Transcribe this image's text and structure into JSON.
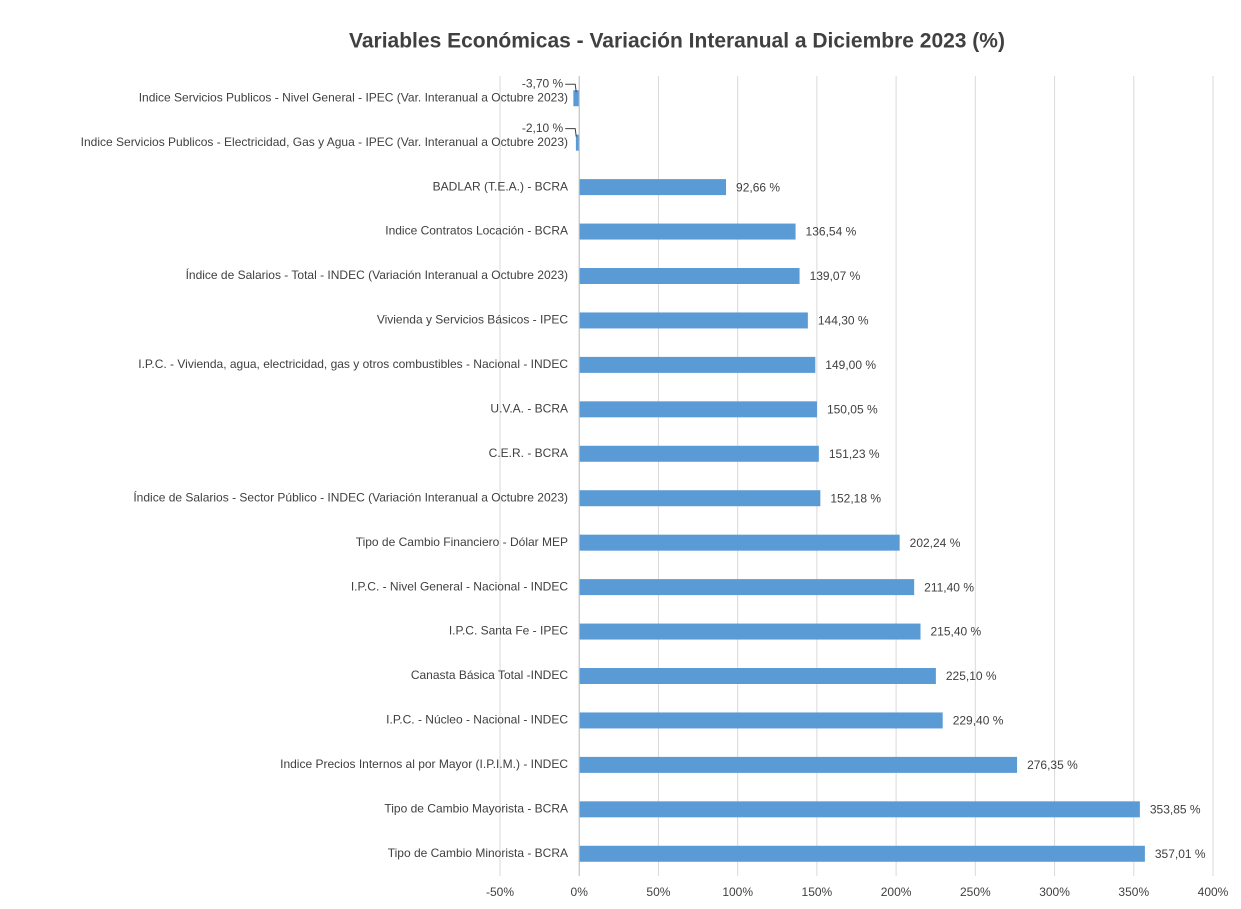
{
  "chart_data": {
    "type": "barh",
    "title": "Variables Económicas - Variación Interanual a Diciembre 2023 (%)",
    "categories": [
      "Indice Servicios Publicos - Nivel General - IPEC (Var. Interanual a Octubre 2023)",
      "Indice Servicios Publicos - Electricidad, Gas y Agua - IPEC (Var. Interanual a Octubre 2023)",
      "BADLAR (T.E.A.) - BCRA",
      "Indice Contratos Locación - BCRA",
      "Índice de Salarios - Total - INDEC (Variación Interanual a Octubre 2023)",
      "Vivienda y Servicios Básicos - IPEC",
      "I.P.C. - Vivienda, agua, electricidad, gas y otros combustibles - Nacional - INDEC",
      "U.V.A. - BCRA",
      "C.E.R. - BCRA",
      "Índice de Salarios - Sector Público - INDEC (Variación Interanual a Octubre 2023)",
      "Tipo de Cambio Financiero - Dólar MEP",
      "I.P.C. - Nivel General - Nacional - INDEC",
      "I.P.C. Santa Fe - IPEC",
      "Canasta Básica Total -INDEC",
      "I.P.C. - Núcleo - Nacional - INDEC",
      "Indice Precios Internos al por Mayor (I.P.I.M.) - INDEC",
      "Tipo de Cambio Mayorista - BCRA",
      "Tipo de Cambio Minorista - BCRA"
    ],
    "values": [
      -3.7,
      -2.1,
      92.66,
      136.54,
      139.07,
      144.3,
      149.0,
      150.05,
      151.23,
      152.18,
      202.24,
      211.4,
      215.4,
      225.1,
      229.4,
      276.35,
      353.85,
      357.01
    ],
    "value_labels": [
      "-3,70 %",
      "-2,10 %",
      "92,66 %",
      "136,54 %",
      "139,07 %",
      "144,30 %",
      "149,00 %",
      "150,05 %",
      "151,23 %",
      "152,18 %",
      "202,24 %",
      "211,40 %",
      "215,40 %",
      "225,10 %",
      "229,40 %",
      "276,35 %",
      "353,85 %",
      "357,01 %"
    ],
    "color": "#5b9bd5",
    "xlim": [
      -50,
      400
    ],
    "xticks": [
      {
        "value": -50,
        "label": "-50%"
      },
      {
        "value": 0,
        "label": "0%"
      },
      {
        "value": 50,
        "label": "50%"
      },
      {
        "value": 100,
        "label": "100%"
      },
      {
        "value": 150,
        "label": "150%"
      },
      {
        "value": 200,
        "label": "200%"
      },
      {
        "value": 250,
        "label": "250%"
      },
      {
        "value": 300,
        "label": "300%"
      },
      {
        "value": 350,
        "label": "350%"
      },
      {
        "value": 400,
        "label": "400%"
      }
    ],
    "grid": true
  }
}
